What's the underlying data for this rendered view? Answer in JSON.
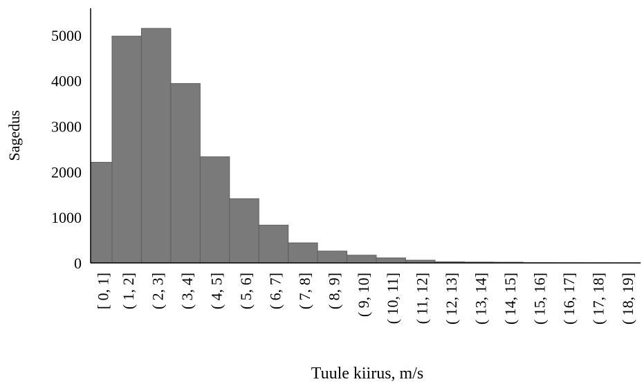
{
  "chart_data": {
    "type": "bar",
    "title": "",
    "xlabel": "Tuule kiirus, m/s",
    "ylabel": "Sagedus",
    "categories": [
      "[ 0, 1]",
      "( 1, 2]",
      "( 2, 3]",
      "( 3, 4]",
      "( 4, 5]",
      "( 5, 6]",
      "( 6, 7]",
      "( 7, 8]",
      "( 8, 9]",
      "( 9, 10]",
      "( 10, 11]",
      "( 11, 12]",
      "( 12, 13]",
      "( 13, 14]",
      "( 14, 15]",
      "( 15, 16]",
      "( 16, 17]",
      "( 17, 18]",
      "( 18, 19]"
    ],
    "values": [
      2210,
      4980,
      5150,
      3940,
      2330,
      1410,
      830,
      440,
      260,
      170,
      110,
      60,
      25,
      18,
      15,
      6,
      4,
      3,
      2
    ],
    "yticks": [
      0,
      1000,
      2000,
      3000,
      4000,
      5000
    ],
    "ylim": [
      0,
      5500
    ],
    "grid": false,
    "colors": {
      "bar_fill": "#7a7a7a",
      "bar_stroke": "#5e5e5e",
      "axis": "#000000"
    }
  }
}
